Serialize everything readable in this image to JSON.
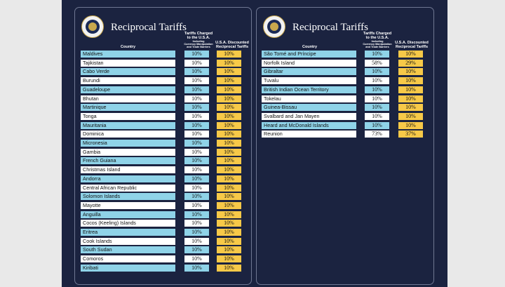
{
  "title": "Reciprocal Tariffs",
  "headers": {
    "country": "Country",
    "charged_line1": "Tariffs Charged",
    "charged_line2": "to the U.S.A.",
    "charged_sub1": "Including",
    "charged_sub2": "Currency Manipulation",
    "charged_sub3": "and Trade Barriers",
    "discounted_line1": "U.S.A. Discounted",
    "discounted_line2": "Reciprocal Tariffs"
  },
  "left_rows": [
    {
      "country": "Maldives",
      "charged": "10%",
      "discounted": "10%"
    },
    {
      "country": "Tajikistan",
      "charged": "10%",
      "discounted": "10%"
    },
    {
      "country": "Cabo Verde",
      "charged": "10%",
      "discounted": "10%"
    },
    {
      "country": "Burundi",
      "charged": "10%",
      "discounted": "10%"
    },
    {
      "country": "Guadeloupe",
      "charged": "10%",
      "discounted": "10%"
    },
    {
      "country": "Bhutan",
      "charged": "10%",
      "discounted": "10%"
    },
    {
      "country": "Martinique",
      "charged": "10%",
      "discounted": "10%"
    },
    {
      "country": "Tonga",
      "charged": "10%",
      "discounted": "10%"
    },
    {
      "country": "Mauritania",
      "charged": "10%",
      "discounted": "10%"
    },
    {
      "country": "Dominica",
      "charged": "10%",
      "discounted": "10%"
    },
    {
      "country": "Micronesia",
      "charged": "10%",
      "discounted": "10%"
    },
    {
      "country": "Gambia",
      "charged": "10%",
      "discounted": "10%"
    },
    {
      "country": "French Guiana",
      "charged": "10%",
      "discounted": "10%"
    },
    {
      "country": "Christmas Island",
      "charged": "10%",
      "discounted": "10%"
    },
    {
      "country": "Andorra",
      "charged": "10%",
      "discounted": "10%"
    },
    {
      "country": "Central African Republic",
      "charged": "10%",
      "discounted": "10%"
    },
    {
      "country": "Solomon Islands",
      "charged": "10%",
      "discounted": "10%"
    },
    {
      "country": "Mayotte",
      "charged": "10%",
      "discounted": "10%"
    },
    {
      "country": "Anguilla",
      "charged": "10%",
      "discounted": "10%"
    },
    {
      "country": "Cocos (Keeling) Islands",
      "charged": "10%",
      "discounted": "10%"
    },
    {
      "country": "Eritrea",
      "charged": "10%",
      "discounted": "10%"
    },
    {
      "country": "Cook Islands",
      "charged": "10%",
      "discounted": "10%"
    },
    {
      "country": "South Sudan",
      "charged": "10%",
      "discounted": "10%"
    },
    {
      "country": "Comoros",
      "charged": "10%",
      "discounted": "10%"
    },
    {
      "country": "Kiribati",
      "charged": "10%",
      "discounted": "10%"
    }
  ],
  "right_rows": [
    {
      "country": "São Tomé and Príncipe",
      "charged": "10%",
      "discounted": "10%"
    },
    {
      "country": "Norfolk Island",
      "charged": "58%",
      "discounted": "29%"
    },
    {
      "country": "Gibraltar",
      "charged": "10%",
      "discounted": "10%"
    },
    {
      "country": "Tuvalu",
      "charged": "10%",
      "discounted": "10%"
    },
    {
      "country": "British Indian Ocean Territory",
      "charged": "10%",
      "discounted": "10%"
    },
    {
      "country": "Tokelau",
      "charged": "10%",
      "discounted": "10%"
    },
    {
      "country": "Guinea-Bissau",
      "charged": "10%",
      "discounted": "10%"
    },
    {
      "country": "Svalbard and Jan Mayen",
      "charged": "10%",
      "discounted": "10%"
    },
    {
      "country": "Heard and McDonald Islands",
      "charged": "10%",
      "discounted": "10%"
    },
    {
      "country": "Reunion",
      "charged": "73%",
      "discounted": "37%"
    }
  ],
  "colors": {
    "background": "#1b2340",
    "row_blue": "#8fd3e8",
    "row_white": "#ffffff",
    "discount_yellow": "#f7c948"
  }
}
